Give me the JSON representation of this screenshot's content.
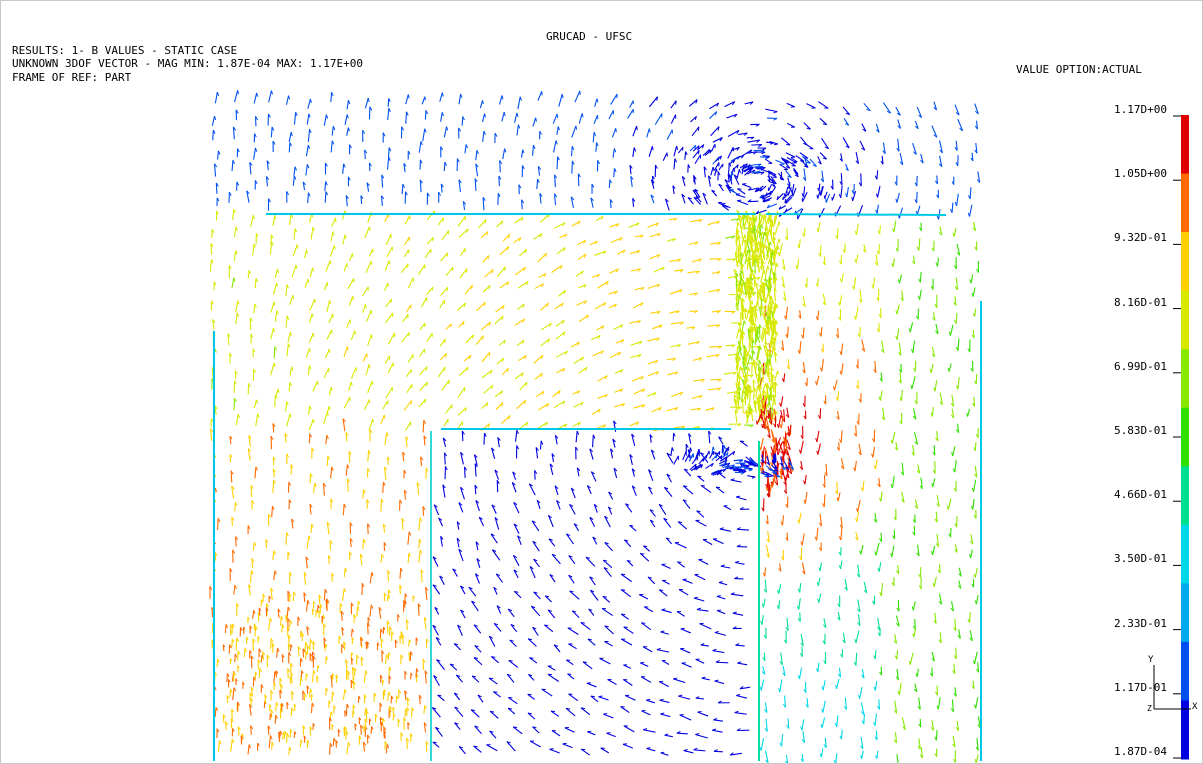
{
  "header": {
    "title": "GRUCAD - UFSC",
    "line1": "RESULTS: 1- B VALUES - STATIC CASE",
    "line2": "UNKNOWN 3DOF VECTOR - MAG MIN: 1.87E-04 MAX: 1.17E+00",
    "line3": "FRAME OF REF: PART",
    "value_option": "VALUE OPTION:ACTUAL"
  },
  "legend": {
    "labels": [
      "1.17D+00",
      "1.05D+00",
      "9.32D-01",
      "8.16D-01",
      "6.99D-01",
      "5.83D-01",
      "4.66D-01",
      "3.50D-01",
      "2.33D-01",
      "1.17D-01",
      "1.87D-04"
    ],
    "colors": [
      "#e00000",
      "#ff6a00",
      "#ffd000",
      "#d8e800",
      "#88e800",
      "#30e000",
      "#00e090",
      "#00d8e8",
      "#00a8f0",
      "#0050f0",
      "#0000e0"
    ]
  },
  "triad": {
    "y": "Y",
    "x": "X",
    "z": "Z"
  },
  "chart_data": {
    "type": "vector-field",
    "title": "GRUCAD - UFSC",
    "quantity": "B VALUES - STATIC CASE",
    "magnitude_min": 0.000187,
    "magnitude_max": 1.17,
    "colorbar_ticks": [
      1.17,
      1.05,
      0.932,
      0.816,
      0.699,
      0.583,
      0.466,
      0.35,
      0.233,
      0.117,
      0.000187
    ]
  }
}
